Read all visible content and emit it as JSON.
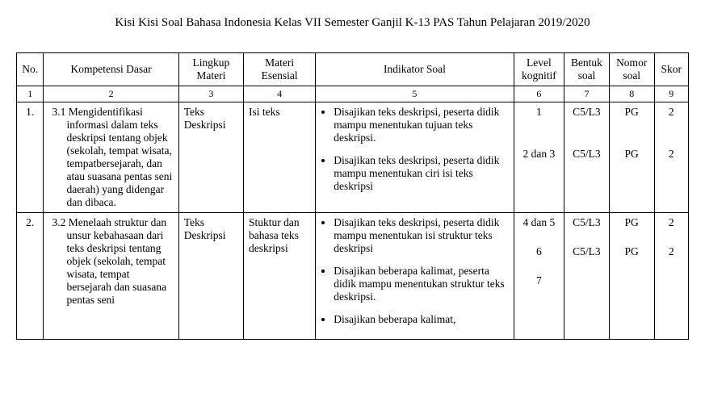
{
  "title": "Kisi Kisi Soal Bahasa Indonesia Kelas VII Semester Ganjil K-13 PAS Tahun Pelajaran 2019/2020",
  "headers": {
    "no": "No.",
    "kd": "Kompetensi Dasar",
    "lm": "Lingkup Materi",
    "me": "Materi Esensial",
    "is": "Indikator Soal",
    "lk": "Level kognitif",
    "bs": "Bentuk soal",
    "ns": "Nomor soal",
    "sk": "Skor"
  },
  "numrow": {
    "n1": "1",
    "n2": "2",
    "n3": "3",
    "n4": "4",
    "n5": "5",
    "n6": "6",
    "n7": "7",
    "n8": "8",
    "n9": "9"
  },
  "rows": [
    {
      "no": "1.",
      "kd": "3.1 Mengidentifikasi informasi dalam teks deskripsi tentang objek (sekolah, tempat wisata, tempatbersejarah, dan atau suasana pentas seni daerah) yang didengar dan dibaca.",
      "lm": "Teks Deskripsi",
      "me": "Isi teks",
      "indikator": [
        "Disajikan teks deskripsi, peserta didik mampu menentukan tujuan teks deskripsi.",
        "Disajikan teks deskripsi, peserta didik mampu menentukan ciri isi teks deskripsi"
      ],
      "lk": [
        "1",
        "2 dan 3"
      ],
      "bs": [
        "C5/L3",
        "C5/L3"
      ],
      "ns": [
        "PG",
        "PG"
      ],
      "sk": [
        "2",
        "2"
      ]
    },
    {
      "no": "2.",
      "kd": "3.2 Menelaah struktur dan unsur kebahasaan dari teks deskripsi tentang objek (sekolah, tempat wisata, tempat bersejarah dan suasana pentas seni",
      "lm": "Teks Deskripsi",
      "me": "Stuktur dan bahasa teks deskripsi",
      "indikator": [
        "Disajikan teks deskripsi, peserta didik mampu menentukan isi struktur teks deskripsi",
        "Disajikan beberapa kalimat, peserta didik mampu menentukan struktur teks deskripsi.",
        "Disajikan beberapa kalimat,"
      ],
      "lk": [
        "4 dan 5",
        "6",
        "7"
      ],
      "bs": [
        "C5/L3",
        "C5/L3",
        ""
      ],
      "ns": [
        "PG",
        "PG",
        ""
      ],
      "sk": [
        "2",
        "2",
        ""
      ]
    }
  ]
}
